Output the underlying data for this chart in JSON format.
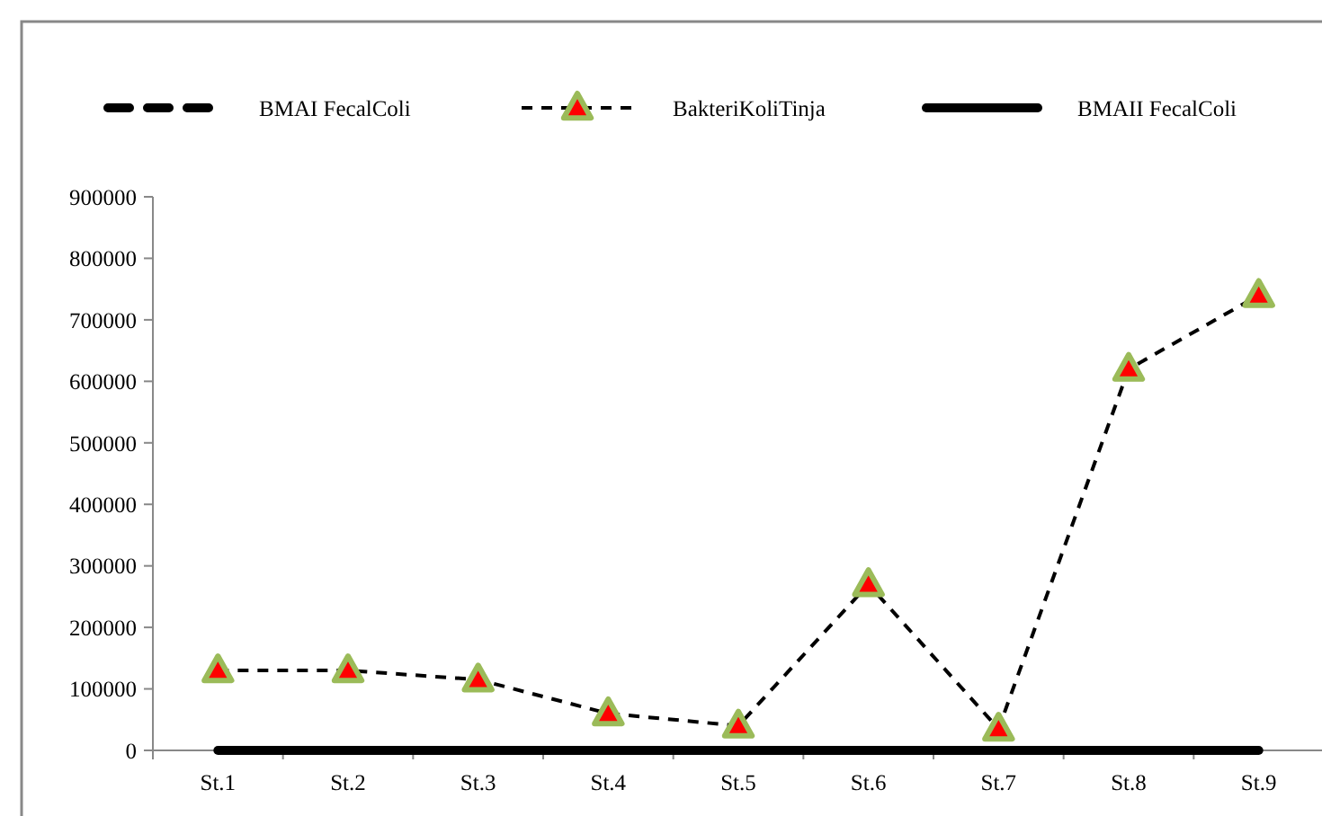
{
  "chart_data": {
    "type": "line",
    "categories": [
      "St.1",
      "St.2",
      "St.3",
      "St.4",
      "St.5",
      "St.6",
      "St.7",
      "St.8",
      "St.9"
    ],
    "series": [
      {
        "name": "BMAI FecalColi",
        "color": "#000000",
        "line_style": "dashed",
        "marker": "none",
        "values": [
          null,
          null,
          null,
          null,
          null,
          null,
          null,
          null,
          null
        ]
      },
      {
        "name": "BakteriKoliTinja",
        "color": "#000000",
        "line_style": "dashed",
        "marker": "triangle",
        "colors": [
          "#ff0000",
          "#ff0000",
          "#ff0000",
          "#ff0000",
          "#ff0000",
          "#ff0000",
          "#ff0000",
          "#ff0000",
          "#ff0000"
        ],
        "values": [
          130000,
          130000,
          115000,
          60000,
          40000,
          270000,
          35000,
          620000,
          740000
        ]
      },
      {
        "name": "BMAII FecalColi",
        "color": "#000000",
        "line_style": "solid",
        "marker": "none",
        "values": [
          0,
          0,
          0,
          0,
          0,
          0,
          0,
          0,
          0
        ]
      }
    ],
    "ylim": [
      0,
      900000
    ],
    "yticks": [
      0,
      100000,
      200000,
      300000,
      400000,
      500000,
      600000,
      700000,
      800000,
      900000
    ],
    "grid": false,
    "legend": "top"
  }
}
